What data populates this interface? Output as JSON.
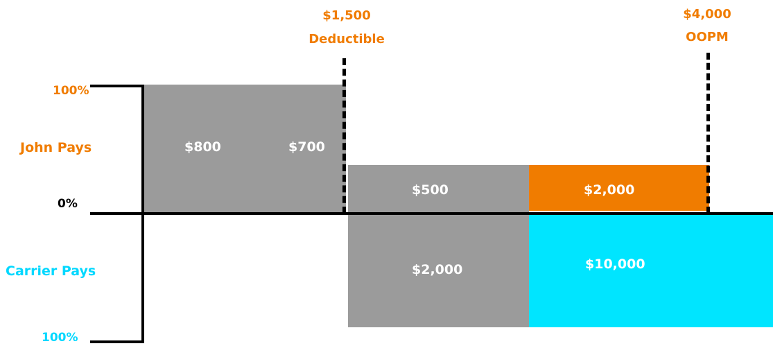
{
  "y_axis_labels": {
    "top": "100%",
    "middle": "0%",
    "bottom": "100%",
    "upper_region": "John Pays",
    "lower_region": "Carrier Pays"
  },
  "markers": {
    "deductible": {
      "amount": "$1,500",
      "label": "Deductible"
    },
    "oopm": {
      "amount": "$4,000",
      "label": "OOPM"
    }
  },
  "segments": {
    "first_block": "$800",
    "second_block": "$700",
    "coinsurance_john": "$500",
    "coinsurance_carrier": "$2,000",
    "after_john": "$2,000",
    "after_carrier": "$10,000"
  },
  "colors": {
    "john": "#f07c00",
    "carrier": "#00e5ff",
    "neutral": "#9b9b9b",
    "axis": "#000000"
  }
}
